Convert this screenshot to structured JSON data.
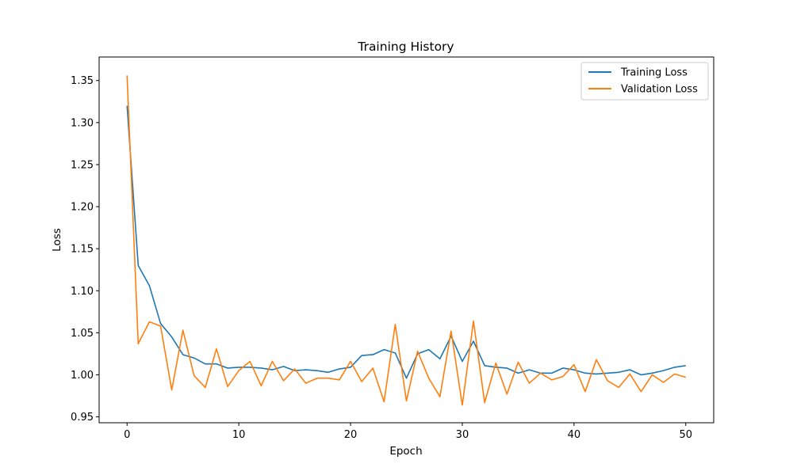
{
  "chart_data": {
    "type": "line",
    "title": "Training History",
    "xlabel": "Epoch",
    "ylabel": "Loss",
    "xlim": [
      -2.5,
      52.5
    ],
    "ylim": [
      0.943,
      1.378
    ],
    "xticks": [
      0,
      10,
      20,
      30,
      40,
      50
    ],
    "yticks": [
      0.95,
      1.0,
      1.05,
      1.1,
      1.15,
      1.2,
      1.25,
      1.3,
      1.35
    ],
    "ytick_labels": [
      "0.95",
      "1.00",
      "1.05",
      "1.10",
      "1.15",
      "1.20",
      "1.25",
      "1.30",
      "1.35"
    ],
    "grid": false,
    "legend_position": "top-right",
    "x": [
      0,
      1,
      2,
      3,
      4,
      5,
      6,
      7,
      8,
      9,
      10,
      11,
      12,
      13,
      14,
      15,
      16,
      17,
      18,
      19,
      20,
      21,
      22,
      23,
      24,
      25,
      26,
      27,
      28,
      29,
      30,
      31,
      32,
      33,
      34,
      35,
      36,
      37,
      38,
      39,
      40,
      41,
      42,
      43,
      44,
      45,
      46,
      47,
      48,
      49,
      50
    ],
    "series": [
      {
        "name": "Training Loss",
        "color": "#1f77b4",
        "values": [
          1.32,
          1.13,
          1.106,
          1.061,
          1.045,
          1.024,
          1.02,
          1.013,
          1.013,
          1.008,
          1.009,
          1.009,
          1.008,
          1.006,
          1.01,
          1.005,
          1.006,
          1.005,
          1.003,
          1.007,
          1.009,
          1.023,
          1.024,
          1.03,
          1.026,
          0.996,
          1.025,
          1.03,
          1.019,
          1.046,
          1.016,
          1.04,
          1.011,
          1.009,
          1.008,
          1.002,
          1.006,
          1.002,
          1.002,
          1.008,
          1.006,
          1.002,
          1.001,
          1.002,
          1.003,
          1.006,
          1.0,
          1.002,
          1.005,
          1.009,
          1.011
        ]
      },
      {
        "name": "Validation Loss",
        "color": "#ff7f0e",
        "values": [
          1.356,
          1.037,
          1.063,
          1.058,
          0.982,
          1.053,
          0.999,
          0.985,
          1.031,
          0.986,
          1.005,
          1.016,
          0.987,
          1.016,
          0.993,
          1.007,
          0.99,
          0.996,
          0.996,
          0.994,
          1.016,
          0.992,
          1.008,
          0.968,
          1.06,
          0.969,
          1.028,
          0.996,
          0.974,
          1.052,
          0.964,
          1.064,
          0.967,
          1.014,
          0.977,
          1.015,
          0.99,
          1.002,
          0.994,
          0.998,
          1.012,
          0.98,
          1.018,
          0.993,
          0.985,
          1.001,
          0.98,
          1.0,
          0.991,
          1.001,
          0.997
        ]
      }
    ]
  }
}
